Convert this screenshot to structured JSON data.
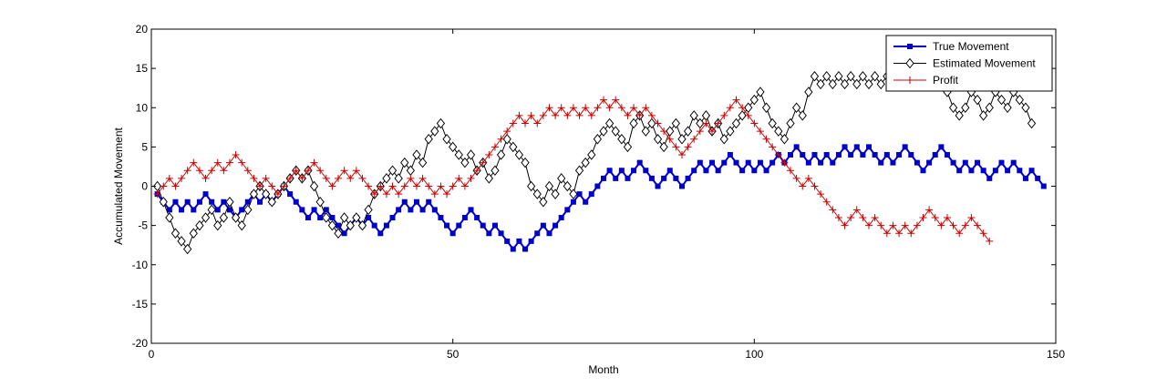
{
  "chart_data": {
    "type": "line",
    "title": "",
    "xlabel": "Month",
    "ylabel": "Accumulated Movement",
    "xlim": [
      0,
      150
    ],
    "ylim": [
      -20,
      20
    ],
    "xticks": [
      0,
      50,
      100,
      150
    ],
    "yticks": [
      -20,
      -15,
      -10,
      -5,
      0,
      5,
      10,
      15,
      20
    ],
    "grid": false,
    "legend_position": "top-right",
    "series": [
      {
        "name": "True Movement",
        "color": "#0000cc",
        "marker": "square",
        "line_width": 2,
        "x_start": 1,
        "values": [
          -1,
          -2,
          -3,
          -2,
          -3,
          -2,
          -3,
          -2,
          -1,
          -2,
          -3,
          -2,
          -3,
          -4,
          -3,
          -2,
          -1,
          -2,
          -1,
          -2,
          -1,
          0,
          -1,
          -2,
          -3,
          -4,
          -3,
          -4,
          -3,
          -4,
          -5,
          -6,
          -5,
          -4,
          -5,
          -4,
          -5,
          -6,
          -5,
          -4,
          -3,
          -2,
          -3,
          -2,
          -3,
          -2,
          -3,
          -4,
          -5,
          -6,
          -5,
          -4,
          -3,
          -4,
          -5,
          -6,
          -5,
          -6,
          -7,
          -8,
          -7,
          -8,
          -7,
          -6,
          -5,
          -6,
          -5,
          -4,
          -3,
          -2,
          -1,
          -2,
          -1,
          0,
          1,
          2,
          1,
          2,
          1,
          2,
          3,
          2,
          1,
          0,
          1,
          2,
          1,
          0,
          1,
          2,
          3,
          2,
          3,
          2,
          3,
          4,
          3,
          2,
          3,
          2,
          3,
          2,
          3,
          4,
          3,
          4,
          5,
          4,
          3,
          4,
          3,
          4,
          3,
          4,
          5,
          4,
          5,
          4,
          5,
          4,
          3,
          4,
          3,
          4,
          5,
          4,
          3,
          2,
          3,
          4,
          5,
          4,
          3,
          2,
          3,
          2,
          3,
          2,
          1,
          2,
          3,
          2,
          3,
          2,
          1,
          2,
          1,
          0
        ]
      },
      {
        "name": "Estimated Movement",
        "color": "#000000",
        "marker": "diamond",
        "line_width": 1,
        "x_start": 1,
        "values": [
          0,
          -2,
          -4,
          -6,
          -7,
          -8,
          -6,
          -5,
          -4,
          -3,
          -5,
          -4,
          -2,
          -4,
          -5,
          -3,
          -1,
          0,
          -1,
          -2,
          -1,
          0,
          1,
          2,
          1,
          2,
          0,
          -2,
          -4,
          -5,
          -6,
          -4,
          -5,
          -4,
          -5,
          -3,
          -1,
          0,
          1,
          2,
          1,
          3,
          2,
          4,
          3,
          6,
          7,
          8,
          6,
          5,
          4,
          3,
          4,
          2,
          3,
          1,
          2,
          4,
          6,
          5,
          4,
          3,
          0,
          -1,
          -2,
          0,
          -1,
          1,
          0,
          -1,
          2,
          3,
          4,
          6,
          7,
          8,
          7,
          6,
          5,
          8,
          9,
          7,
          8,
          6,
          5,
          7,
          8,
          6,
          7,
          9,
          8,
          9,
          7,
          8,
          6,
          7,
          8,
          9,
          10,
          11,
          12,
          10,
          8,
          7,
          6,
          8,
          10,
          9,
          12,
          14,
          13,
          14,
          13,
          14,
          13,
          14,
          13,
          14,
          13,
          14,
          13,
          14,
          13,
          15,
          16,
          14,
          13,
          14,
          13,
          14,
          13,
          12,
          10,
          9,
          10,
          12,
          11,
          9,
          10,
          12,
          11,
          10,
          12,
          11,
          10,
          8
        ]
      },
      {
        "name": "Profit",
        "color": "#cc0000",
        "marker": "plus",
        "line_width": 1,
        "x_start": 1,
        "values": [
          -1,
          0,
          1,
          0,
          1,
          2,
          3,
          2,
          1,
          2,
          3,
          2,
          3,
          4,
          3,
          2,
          1,
          0,
          1,
          0,
          -1,
          0,
          1,
          2,
          1,
          2,
          3,
          2,
          1,
          0,
          1,
          2,
          1,
          2,
          1,
          0,
          -1,
          0,
          -1,
          0,
          -1,
          0,
          1,
          0,
          1,
          0,
          -1,
          0,
          -1,
          0,
          1,
          0,
          1,
          2,
          3,
          4,
          5,
          6,
          7,
          8,
          9,
          8,
          9,
          8,
          9,
          10,
          9,
          10,
          9,
          10,
          9,
          10,
          9,
          10,
          11,
          10,
          11,
          10,
          9,
          10,
          9,
          10,
          9,
          8,
          7,
          6,
          5,
          4,
          5,
          6,
          7,
          8,
          7,
          8,
          9,
          10,
          11,
          10,
          9,
          8,
          7,
          6,
          5,
          4,
          3,
          2,
          1,
          0,
          1,
          0,
          -1,
          -2,
          -3,
          -4,
          -5,
          -4,
          -3,
          -4,
          -5,
          -4,
          -5,
          -6,
          -5,
          -6,
          -5,
          -6,
          -5,
          -4,
          -3,
          -4,
          -5,
          -4,
          -5,
          -6,
          -5,
          -4,
          -5,
          -6,
          -7
        ]
      }
    ]
  }
}
